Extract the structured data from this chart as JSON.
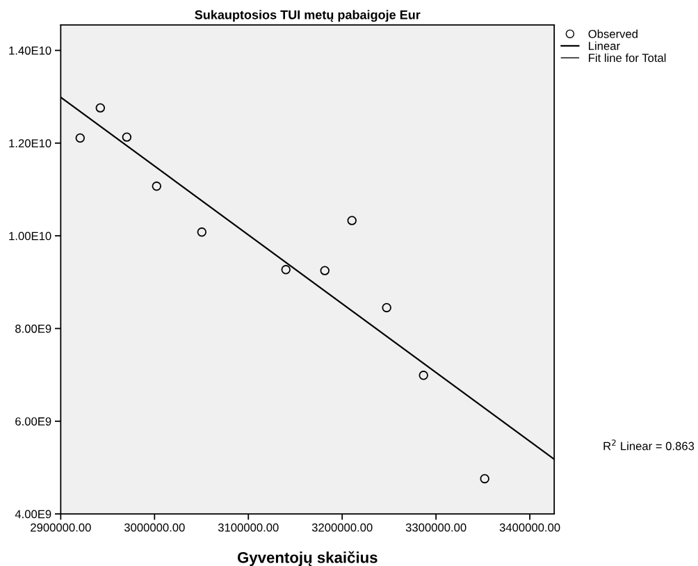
{
  "chart_data": {
    "type": "scatter",
    "title": "Sukauptosios TUI metų pabaigoje Eur",
    "xlabel": "Gyventojų skaičius",
    "xlim": [
      2900000,
      3426000
    ],
    "xticks": [
      {
        "value": 2900000,
        "label": "2900000.00"
      },
      {
        "value": 3000000,
        "label": "3000000.00"
      },
      {
        "value": 3100000,
        "label": "3100000.00"
      },
      {
        "value": 3200000,
        "label": "3200000.00"
      },
      {
        "value": 3300000,
        "label": "3300000.00"
      },
      {
        "value": 3400000,
        "label": "3400000.00"
      }
    ],
    "ylim": [
      4000000000,
      14550000000
    ],
    "yticks": [
      {
        "value": 4000000000,
        "label": "4.00E9"
      },
      {
        "value": 6000000000,
        "label": "6.00E9"
      },
      {
        "value": 8000000000,
        "label": "8.00E9"
      },
      {
        "value": 10000000000,
        "label": "1.00E10"
      },
      {
        "value": 12000000000,
        "label": "1.20E10"
      },
      {
        "value": 14000000000,
        "label": "1.40E10"
      }
    ],
    "series": [
      {
        "name": "Observed",
        "marker": "circle",
        "color": "#000000",
        "x": [
          2920700,
          2942200,
          2970400,
          3002200,
          3050400,
          3140000,
          3181500,
          3210400,
          3247400,
          3286700,
          3351900
        ],
        "values": [
          12110000000,
          12760000000,
          12130000000,
          11070000000,
          10080000000,
          9270000000,
          9250000000,
          10330000000,
          8450000000,
          6990000000,
          4760000000
        ]
      },
      {
        "name": "Linear",
        "type": "line",
        "marker": "none",
        "line_style": "solid",
        "color": "#000000",
        "x": [
          2900000,
          3426000
        ],
        "values": [
          12990000000,
          5180000000
        ]
      }
    ],
    "annotations": [
      "Fit line for Total",
      "R$^{2}$ Linear = 0.863"
    ],
    "legend": "top right",
    "grid": false
  }
}
